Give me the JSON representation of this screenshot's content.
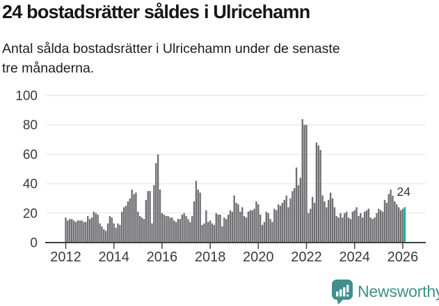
{
  "header": {
    "title": "24 bostadsrätter såldes i Ulricehamn",
    "subtitle": "Antal sålda bostadsrätter i Ulricehamn under de senaste tre månaderna.",
    "subtitle_lines": [
      "Antal sålda bostadsrätter i Ulricehamn under de senaste",
      "tre månaderna."
    ]
  },
  "chart_data": {
    "type": "bar",
    "title": "",
    "xlabel": "",
    "ylabel": "",
    "x_start_month": "2012-01",
    "x_end_month": "2026-02",
    "values": [
      17,
      15,
      16,
      16,
      15,
      14,
      15,
      15,
      15,
      14,
      14,
      18,
      16,
      17,
      21,
      20,
      19,
      13,
      11,
      9,
      8,
      13,
      18,
      17,
      13,
      10,
      13,
      12,
      21,
      24,
      25,
      28,
      30,
      36,
      33,
      34,
      21,
      18,
      17,
      16,
      29,
      35,
      35,
      13,
      39,
      54,
      60,
      36,
      20,
      19,
      18,
      18,
      17,
      17,
      15,
      14,
      16,
      16,
      19,
      20,
      18,
      16,
      14,
      18,
      28,
      42,
      36,
      34,
      12,
      13,
      22,
      14,
      15,
      13,
      12,
      20,
      19,
      19,
      11,
      17,
      16,
      19,
      22,
      21,
      32,
      27,
      26,
      21,
      24,
      18,
      17,
      21,
      22,
      22,
      23,
      28,
      26,
      19,
      12,
      14,
      21,
      20,
      16,
      14,
      23,
      22,
      26,
      25,
      27,
      29,
      32,
      24,
      30,
      35,
      37,
      51,
      39,
      44,
      84,
      80,
      80,
      20,
      23,
      31,
      27,
      68,
      66,
      63,
      32,
      28,
      24,
      29,
      34,
      30,
      24,
      18,
      17,
      20,
      17,
      20,
      21,
      17,
      16,
      21,
      22,
      24,
      18,
      20,
      17,
      21,
      22,
      23,
      17,
      16,
      17,
      20,
      23,
      22,
      21,
      29,
      27,
      33,
      36,
      32,
      28,
      26,
      24,
      22,
      23,
      24
    ],
    "highlight": {
      "index": 169,
      "value": 24,
      "label": "24",
      "color": "#00a1a1"
    },
    "bar_color": "#6e6d71",
    "grid": "horizontal",
    "gridline_color": "#e8e8e8",
    "axis_color": "#424242",
    "tick_label_color": "#3a3a3a",
    "ylim": [
      0,
      100
    ],
    "y_ticks": [
      "0",
      "20",
      "40",
      "60",
      "80",
      "100"
    ],
    "x_tick_labels": [
      "2012",
      "2014",
      "2016",
      "2018",
      "2020",
      "2022",
      "2024",
      "2026"
    ]
  },
  "footer": {
    "brand": "Newsworthy",
    "brand_color": "#3f908d"
  }
}
